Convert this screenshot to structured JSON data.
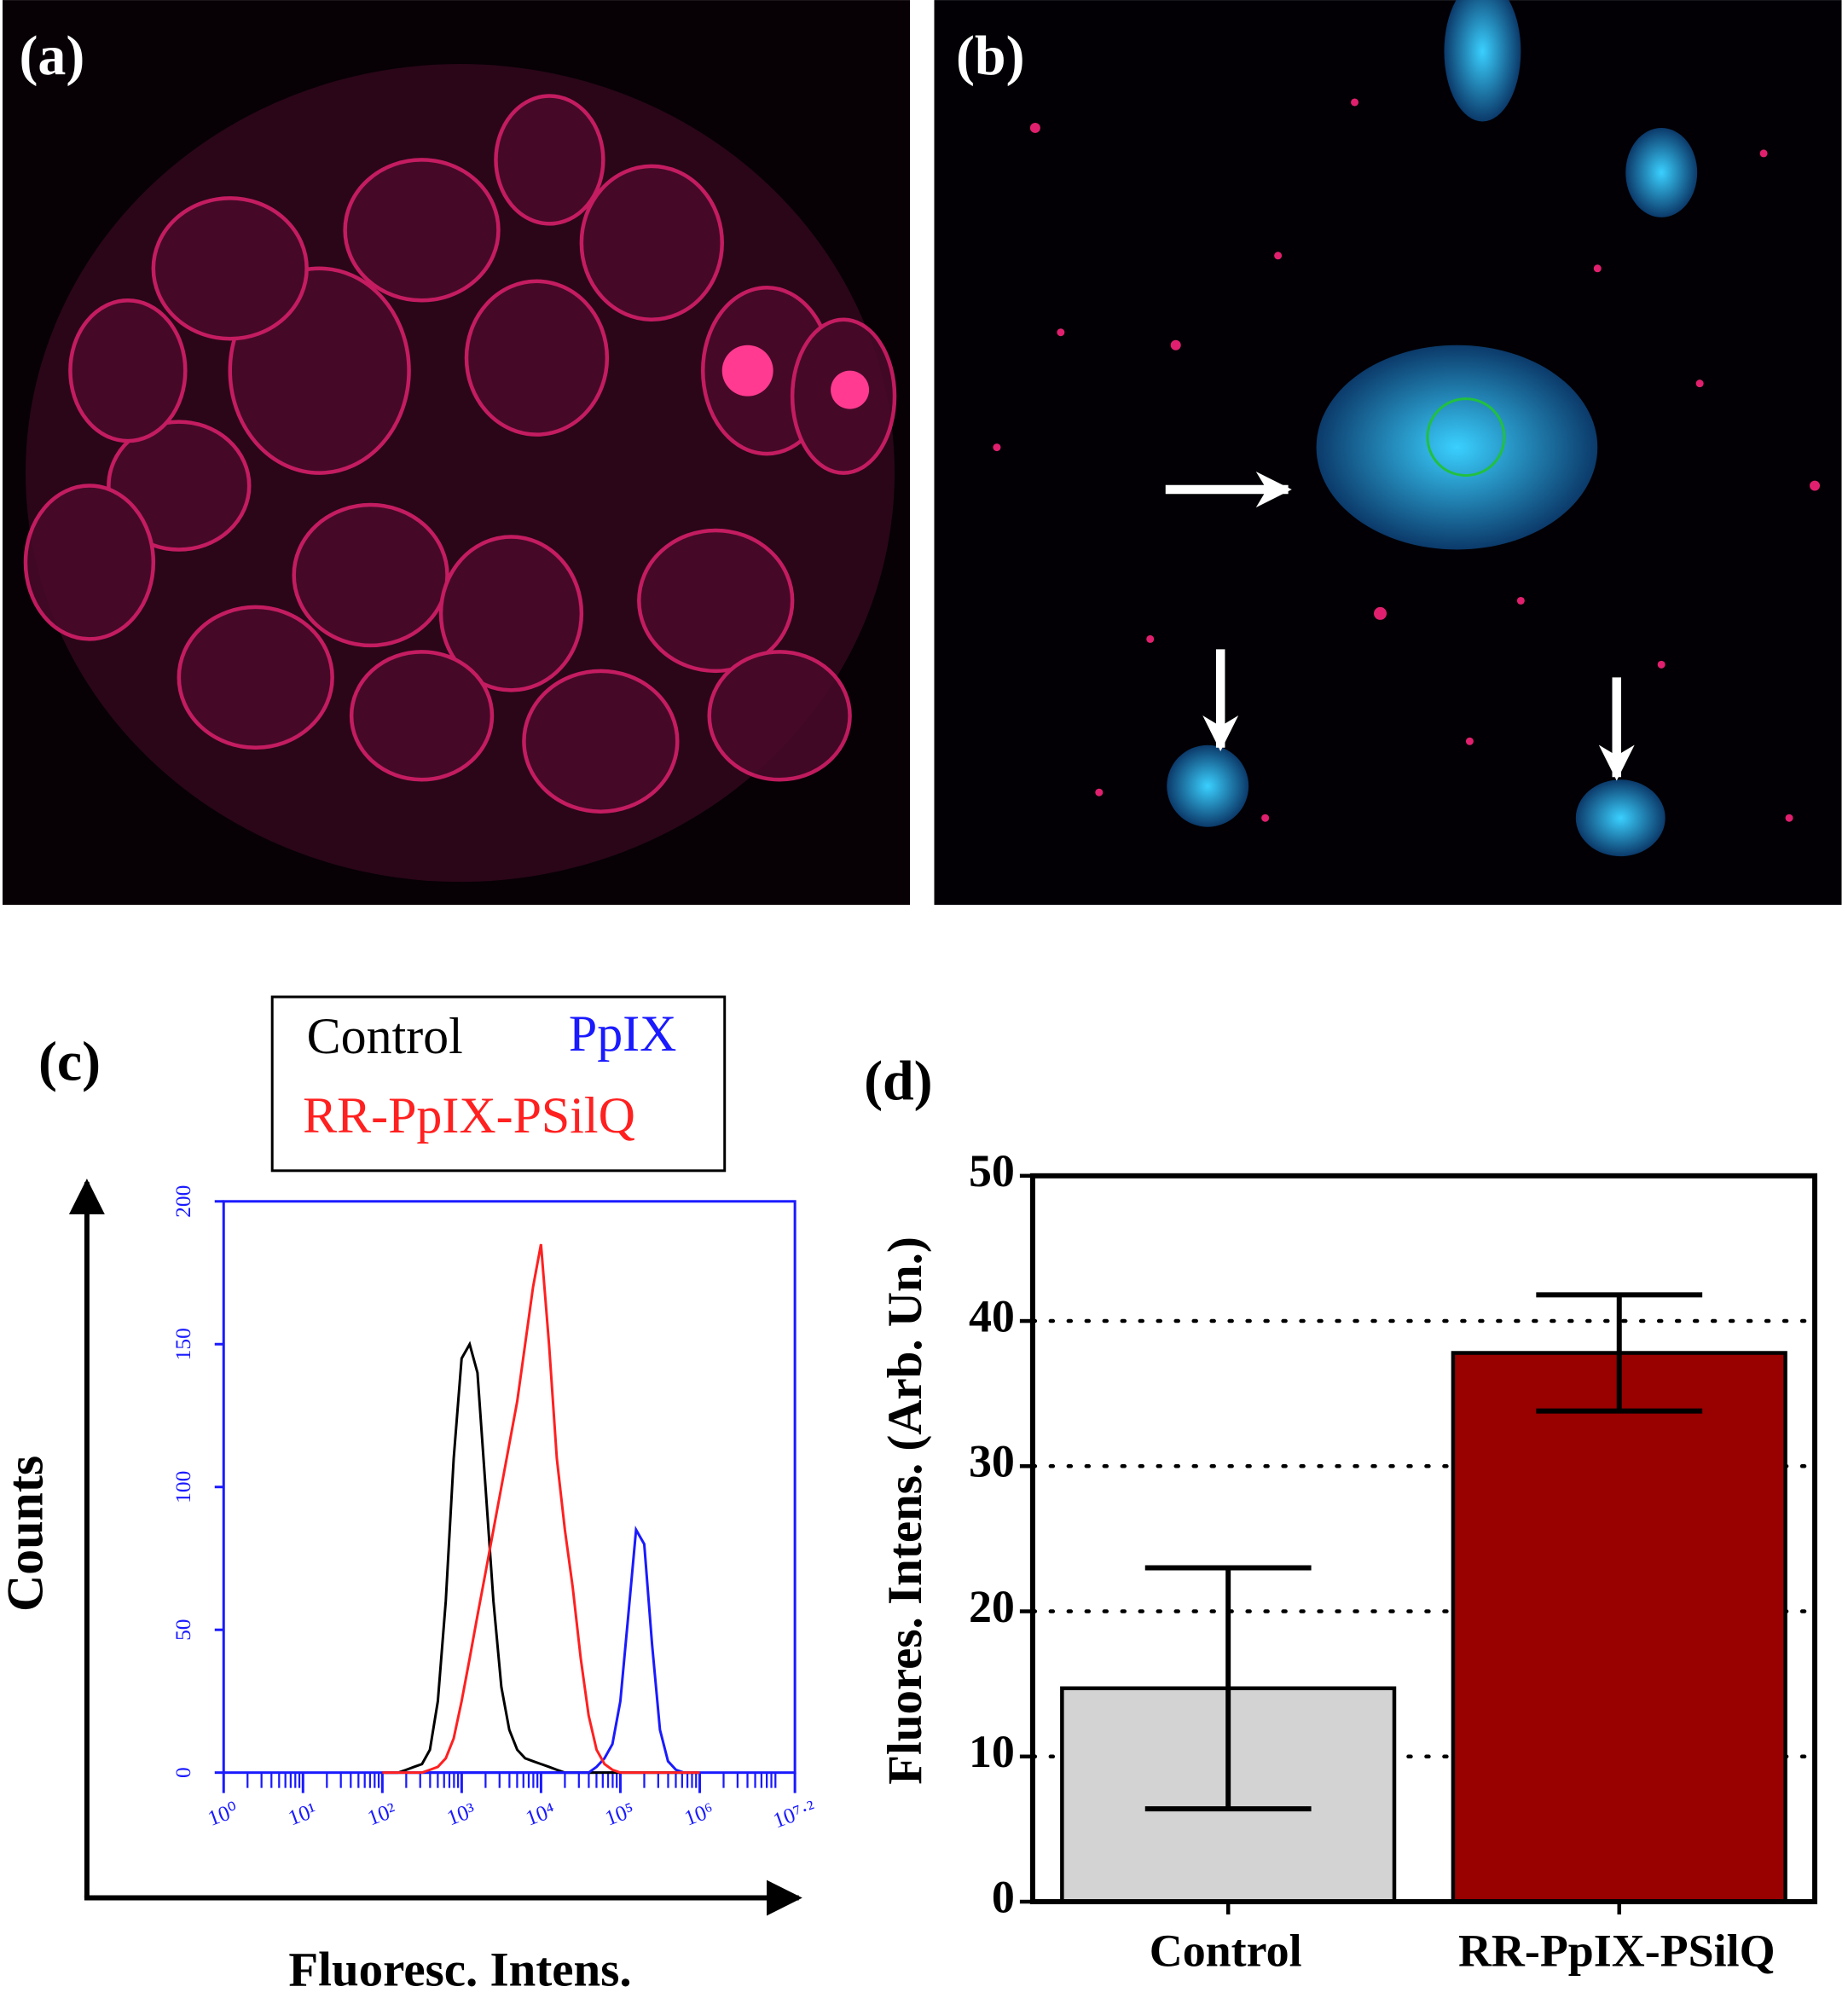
{
  "panels": {
    "a": "(a)",
    "b": "(b)",
    "c": "(c)",
    "d": "(d)"
  },
  "chart_data": [
    {
      "type": "line",
      "xlabel": "Fluoresc. Intens.",
      "ylabel": "Counts",
      "xscale": "log",
      "x": [
        100,
        126,
        158,
        200,
        251,
        316,
        398,
        501,
        631,
        794,
        1000,
        1260,
        1580,
        2000,
        2510,
        3160,
        3980,
        5010,
        6310,
        7940,
        10000,
        12600,
        15800,
        20000,
        25100,
        31600,
        39800,
        50100,
        63100,
        79400,
        100000,
        126000,
        158000,
        200000,
        251000,
        316000,
        398000,
        501000,
        631000,
        794000,
        1000000
      ],
      "series": [
        {
          "name": "Control",
          "color": "#000000",
          "values": [
            0,
            0,
            0,
            1,
            2,
            3,
            8,
            25,
            60,
            110,
            145,
            150,
            140,
            100,
            60,
            30,
            15,
            8,
            5,
            4,
            3,
            2,
            1,
            0,
            0,
            0,
            0,
            0,
            0,
            0,
            0,
            0,
            0,
            0,
            0,
            0,
            0,
            0,
            0,
            0,
            0
          ]
        },
        {
          "name": "PpIX",
          "color": "#1a1aff",
          "values": [
            0,
            0,
            0,
            0,
            0,
            0,
            0,
            0,
            0,
            0,
            0,
            0,
            0,
            0,
            0,
            0,
            0,
            0,
            0,
            0,
            0,
            0,
            0,
            0,
            0,
            0,
            0,
            2,
            5,
            10,
            25,
            55,
            85,
            80,
            45,
            15,
            4,
            1,
            0,
            0,
            0
          ]
        },
        {
          "name": "RR-PpIX-PSilQ",
          "color": "#ff2020",
          "values": [
            0,
            0,
            0,
            0,
            0,
            0,
            1,
            2,
            5,
            12,
            25,
            40,
            55,
            70,
            85,
            100,
            115,
            130,
            150,
            170,
            185,
            150,
            110,
            85,
            65,
            40,
            20,
            8,
            3,
            1,
            0,
            0,
            0,
            0,
            0,
            0,
            0,
            0,
            0,
            0,
            0
          ]
        }
      ],
      "xlim": [
        1,
        15848932
      ],
      "xticks": [
        {
          "value": 1,
          "label": "10⁰"
        },
        {
          "value": 10,
          "label": "10¹"
        },
        {
          "value": 100,
          "label": "10²"
        },
        {
          "value": 1000,
          "label": "10³"
        },
        {
          "value": 10000,
          "label": "10⁴"
        },
        {
          "value": 100000,
          "label": "10⁵"
        },
        {
          "value": 1000000,
          "label": "10⁶"
        },
        {
          "value": 15848932,
          "label": "10⁷·²"
        }
      ],
      "ylim": [
        0,
        200
      ],
      "yticks": [
        0,
        50,
        100,
        150,
        200
      ],
      "axis_color": "#1a1aff",
      "legend": "top"
    },
    {
      "type": "bar",
      "ylabel": "Fluores. Intens.  (Arb. Un.)",
      "categories": [
        "Control",
        "RR-PpIX-PSilQ"
      ],
      "values": [
        14.7,
        37.8
      ],
      "errors": [
        8.3,
        4.0
      ],
      "colors": [
        "#d3d3d3",
        "#990000"
      ],
      "ylim": [
        0,
        50
      ],
      "yticks": [
        0,
        10,
        20,
        30,
        40,
        50
      ],
      "grid": true
    }
  ]
}
